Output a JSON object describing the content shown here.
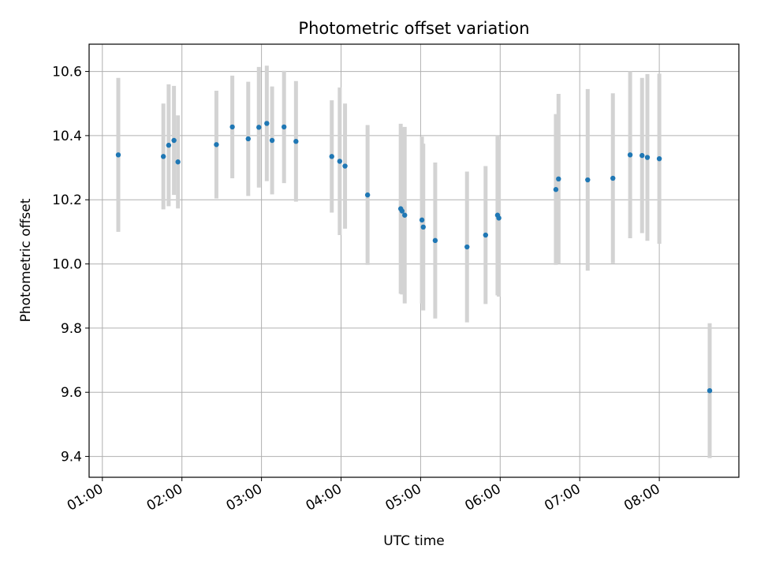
{
  "chart_data": {
    "type": "scatter",
    "title": "Photometric offset variation",
    "xlabel": "UTC time",
    "ylabel": "Photometric offset",
    "x_unit": "hours UTC",
    "xlim": [
      "00:50",
      "09:00"
    ],
    "ylim": [
      9.335,
      10.685
    ],
    "x_ticks": [
      "01:00",
      "02:00",
      "03:00",
      "04:00",
      "05:00",
      "06:00",
      "07:00",
      "08:00"
    ],
    "y_ticks": [
      "9.4",
      "9.6",
      "9.8",
      "10.0",
      "10.2",
      "10.4",
      "10.6"
    ],
    "grid": true,
    "colors": {
      "points": "#1f77b4",
      "errorbars": "#d3d3d3",
      "grid": "#b0b0b0"
    },
    "points": [
      {
        "x": "01:12",
        "y": 10.34,
        "err": 0.24
      },
      {
        "x": "01:46",
        "y": 10.335,
        "err": 0.165
      },
      {
        "x": "01:50",
        "y": 10.37,
        "err": 0.19
      },
      {
        "x": "01:54",
        "y": 10.385,
        "err": 0.17
      },
      {
        "x": "01:57",
        "y": 10.318,
        "err": 0.145
      },
      {
        "x": "02:26",
        "y": 10.372,
        "err": 0.168
      },
      {
        "x": "02:38",
        "y": 10.427,
        "err": 0.16
      },
      {
        "x": "02:50",
        "y": 10.39,
        "err": 0.178
      },
      {
        "x": "02:58",
        "y": 10.426,
        "err": 0.188
      },
      {
        "x": "03:04",
        "y": 10.438,
        "err": 0.18
      },
      {
        "x": "03:08",
        "y": 10.385,
        "err": 0.168
      },
      {
        "x": "03:17",
        "y": 10.427,
        "err": 0.175
      },
      {
        "x": "03:26",
        "y": 10.382,
        "err": 0.188
      },
      {
        "x": "03:53",
        "y": 10.335,
        "err": 0.175
      },
      {
        "x": "03:59",
        "y": 10.32,
        "err": 0.23
      },
      {
        "x": "04:03",
        "y": 10.305,
        "err": 0.195
      },
      {
        "x": "04:20",
        "y": 10.215,
        "err": 0.218
      },
      {
        "x": "04:45",
        "y": 10.172,
        "err": 0.265
      },
      {
        "x": "04:46",
        "y": 10.165,
        "err": 0.26
      },
      {
        "x": "04:48",
        "y": 10.152,
        "err": 0.275
      },
      {
        "x": "05:01",
        "y": 10.137,
        "err": 0.26
      },
      {
        "x": "05:02",
        "y": 10.115,
        "err": 0.26
      },
      {
        "x": "05:11",
        "y": 10.073,
        "err": 0.243
      },
      {
        "x": "05:35",
        "y": 10.053,
        "err": 0.235
      },
      {
        "x": "05:49",
        "y": 10.09,
        "err": 0.215
      },
      {
        "x": "05:58",
        "y": 10.152,
        "err": 0.25
      },
      {
        "x": "05:59",
        "y": 10.143,
        "err": 0.245
      },
      {
        "x": "06:42",
        "y": 10.232,
        "err": 0.235
      },
      {
        "x": "06:44",
        "y": 10.265,
        "err": 0.265
      },
      {
        "x": "07:06",
        "y": 10.262,
        "err": 0.283
      },
      {
        "x": "07:25",
        "y": 10.267,
        "err": 0.265
      },
      {
        "x": "07:38",
        "y": 10.34,
        "err": 0.26
      },
      {
        "x": "07:47",
        "y": 10.338,
        "err": 0.242
      },
      {
        "x": "07:51",
        "y": 10.332,
        "err": 0.26
      },
      {
        "x": "08:00",
        "y": 10.328,
        "err": 0.265
      },
      {
        "x": "08:38",
        "y": 9.605,
        "err": 0.21
      }
    ]
  }
}
